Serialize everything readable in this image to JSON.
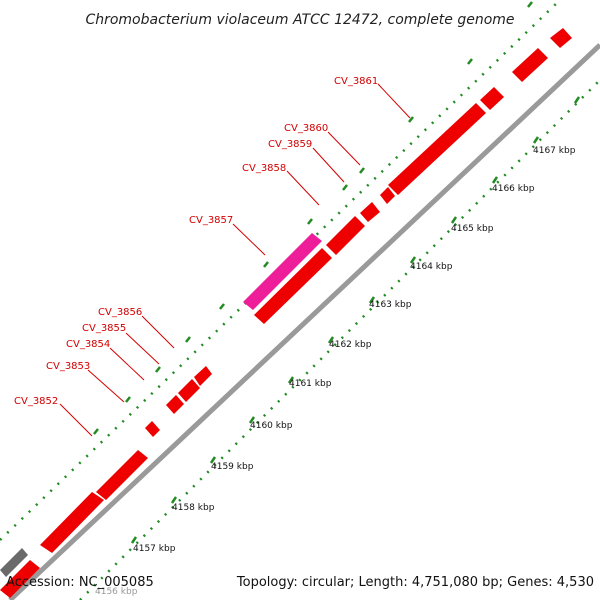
{
  "title": "Chromobacterium violaceum ATCC 12472, complete genome",
  "accession": "Accession: NC_005085",
  "summary": "Topology: circular; Length: 4,751,080 bp; Genes: 4,530",
  "colors": {
    "gene": "#ee0000",
    "highlight_gene": "#ee1d9a",
    "backbone": "#999999",
    "label": "#d40000",
    "gc_dots": "#228b22"
  },
  "gene_labels": [
    "CV_3852",
    "CV_3853",
    "CV_3854",
    "CV_3855",
    "CV_3856",
    "CV_3857",
    "CV_3858",
    "CV_3859",
    "CV_3860",
    "CV_3861"
  ],
  "scale_ticks": [
    "4156 kbp",
    "4157 kbp",
    "4158 kbp",
    "4159 kbp",
    "4160 kbp",
    "4161 kbp",
    "4162 kbp",
    "4163 kbp",
    "4164 kbp",
    "4165 kbp",
    "4166 kbp",
    "4167 kbp"
  ]
}
